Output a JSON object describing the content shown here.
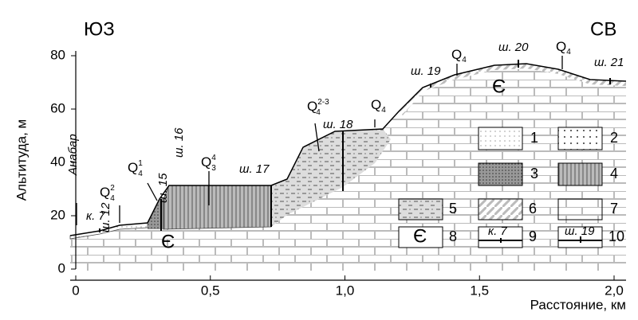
{
  "header": {
    "left": "ЮЗ",
    "right": "СВ"
  },
  "axes": {
    "ylabel": "Альтитуда, м",
    "xlabel": "Расстояние, км",
    "xlim": [
      0,
      2.0
    ],
    "ylim": [
      0,
      80
    ],
    "xticks": [
      0,
      {
        "value": 0.5,
        "label": "0,5"
      },
      {
        "value": 1.0,
        "label": "1,0"
      },
      {
        "value": 1.5,
        "label": "1,5"
      },
      {
        "value": 2.0,
        "label": "2,0"
      }
    ],
    "yticks": [
      0,
      20,
      40,
      60,
      80
    ]
  },
  "river": "Анабар",
  "sites": [
    "к. 7",
    "ш. 12",
    "ш. 15",
    "ш. 16",
    "ш. 17",
    "ш. 18",
    "ш. 19",
    "ш. 20",
    "ш. 21"
  ],
  "ages": [
    {
      "base": "Q",
      "sub": "4",
      "sup": "2"
    },
    {
      "base": "Q",
      "sub": "4",
      "sup": "1"
    },
    {
      "base": "Q",
      "sub": "3",
      "sup": "4"
    },
    {
      "base": "Q",
      "sub": "4",
      "sup": "2-3"
    },
    {
      "base": "Q",
      "sub": "4"
    },
    {
      "base": "Q",
      "sub": "4"
    },
    {
      "base": "Q",
      "sub": "4"
    }
  ],
  "bedrock": "Є",
  "legend": {
    "numbers": [
      "1",
      "2",
      "3",
      "4",
      "5",
      "6",
      "7",
      "8",
      "9",
      "10"
    ],
    "box8": "Є",
    "box9": "к. 7",
    "box10": "ш. 19"
  }
}
